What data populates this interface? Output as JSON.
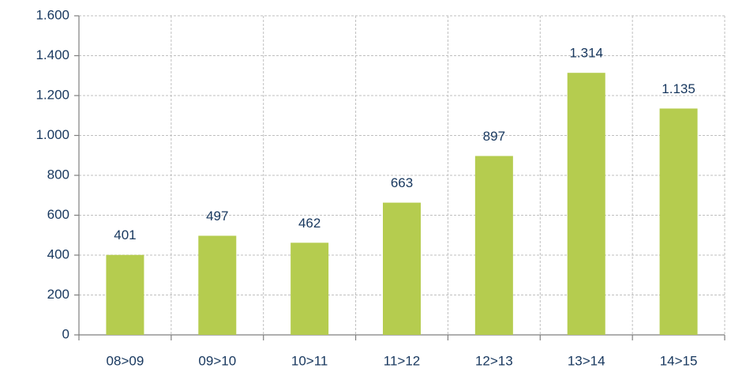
{
  "chart_data": {
    "type": "bar",
    "categories": [
      "08>09",
      "09>10",
      "10>11",
      "11>12",
      "12>13",
      "13>14",
      "14>15"
    ],
    "values": [
      401,
      497,
      462,
      663,
      897,
      1314,
      1135
    ],
    "value_labels": [
      "401",
      "497",
      "462",
      "663",
      "897",
      "1.314",
      "1.135"
    ],
    "color": "#b5cc4f",
    "ylim": [
      0,
      1600
    ],
    "yticks": [
      0,
      200,
      400,
      600,
      800,
      {
        "value": 1000,
        "label": "1.000"
      },
      {
        "value": 1200,
        "label": "1.200"
      },
      {
        "value": 1400,
        "label": "1.400"
      },
      {
        "value": 1600,
        "label": "1.600"
      }
    ],
    "grid": true
  }
}
